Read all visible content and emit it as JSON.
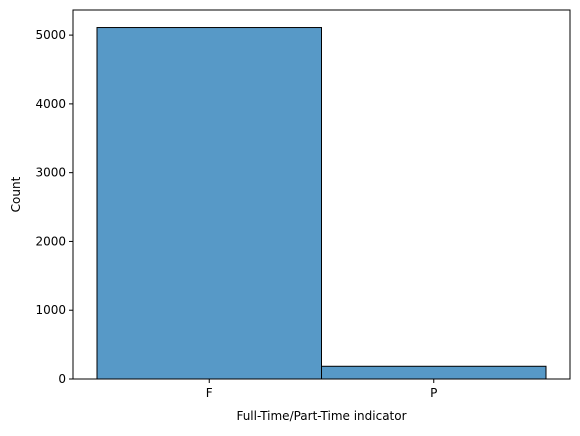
{
  "chart_data": {
    "type": "bar",
    "title": "",
    "xlabel": "Full-Time/Part-Time indicator",
    "ylabel": "Count",
    "categories": [
      "F",
      "P"
    ],
    "values": [
      5110,
      185
    ],
    "ylim": [
      0,
      5365
    ],
    "yticks": [
      0,
      1000,
      2000,
      3000,
      4000,
      5000
    ],
    "grid": false,
    "legend": "none",
    "bar_color": "#5799c7",
    "edge_color": "#000000"
  }
}
